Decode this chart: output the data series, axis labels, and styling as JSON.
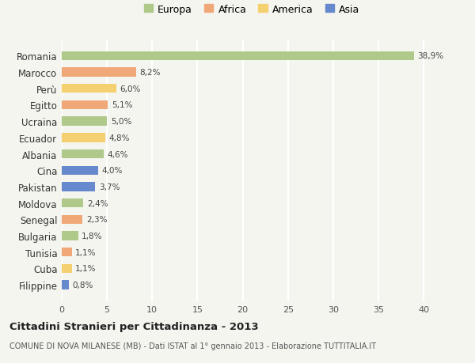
{
  "countries": [
    "Romania",
    "Marocco",
    "Perù",
    "Egitto",
    "Ucraina",
    "Ecuador",
    "Albania",
    "Cina",
    "Pakistan",
    "Moldova",
    "Senegal",
    "Bulgaria",
    "Tunisia",
    "Cuba",
    "Filippine"
  ],
  "values": [
    38.9,
    8.2,
    6.0,
    5.1,
    5.0,
    4.8,
    4.6,
    4.0,
    3.7,
    2.4,
    2.3,
    1.8,
    1.1,
    1.1,
    0.8
  ],
  "labels": [
    "38,9%",
    "8,2%",
    "6,0%",
    "5,1%",
    "5,0%",
    "4,8%",
    "4,6%",
    "4,0%",
    "3,7%",
    "2,4%",
    "2,3%",
    "1,8%",
    "1,1%",
    "1,1%",
    "0,8%"
  ],
  "continents": [
    "Europa",
    "Africa",
    "America",
    "Africa",
    "Europa",
    "America",
    "Europa",
    "Asia",
    "Asia",
    "Europa",
    "Africa",
    "Europa",
    "Africa",
    "America",
    "Asia"
  ],
  "colors": {
    "Europa": "#aec98a",
    "Africa": "#f0a878",
    "America": "#f5d070",
    "Asia": "#6688cc"
  },
  "legend_order": [
    "Europa",
    "Africa",
    "America",
    "Asia"
  ],
  "xlim": [
    0,
    42
  ],
  "xticks": [
    0,
    5,
    10,
    15,
    20,
    25,
    30,
    35,
    40
  ],
  "title": "Cittadini Stranieri per Cittadinanza - 2013",
  "subtitle": "COMUNE DI NOVA MILANESE (MB) - Dati ISTAT al 1° gennaio 2013 - Elaborazione TUTTITALIA.IT",
  "background_color": "#f5f5f0",
  "bar_height": 0.55
}
